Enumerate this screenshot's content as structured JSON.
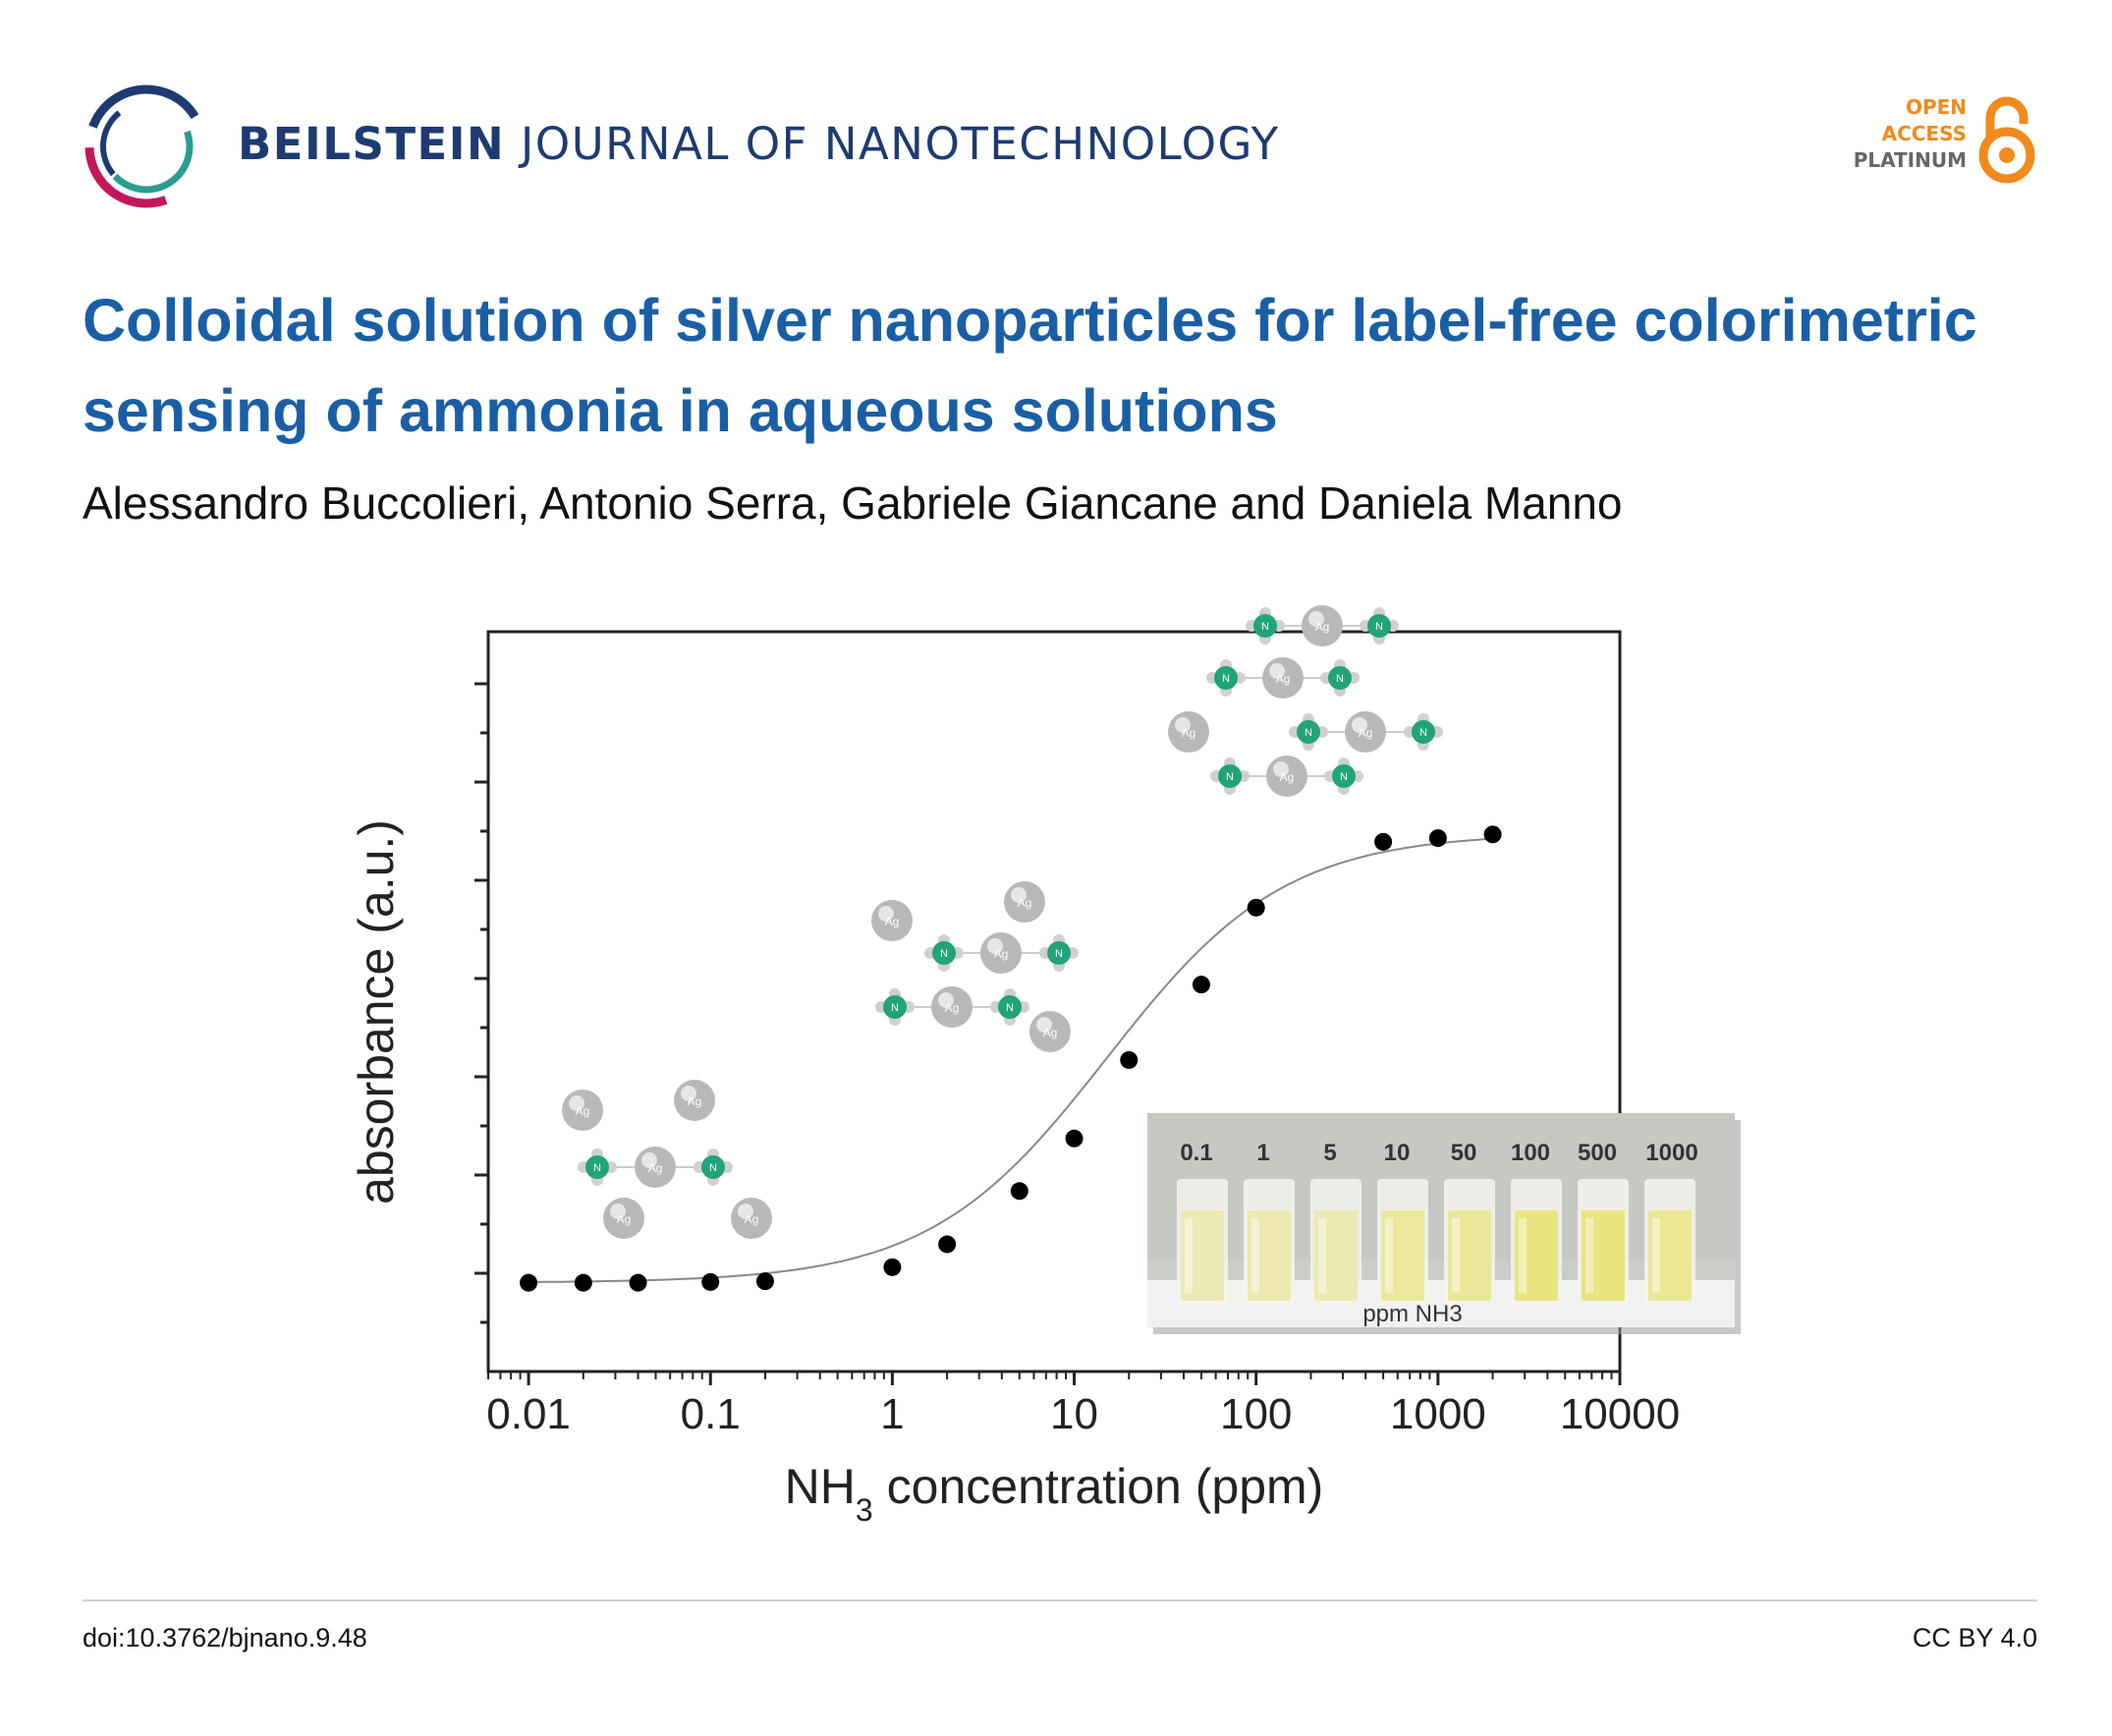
{
  "journal": {
    "name_bold": "BEILSTEIN",
    "name_rest": "JOURNAL OF NANOTECHNOLOGY"
  },
  "open_access": {
    "line1": "OPEN",
    "line2": "ACCESS",
    "line3": "PLATINUM",
    "accent_color": "#f08a1c"
  },
  "article": {
    "title": "Colloidal solution of silver nanoparticles for label-free colorimetric sensing of ammonia in aqueous solutions",
    "authors": "Alessandro Buccolieri, Antonio Serra, Gabriele Giancane and Daniela Manno"
  },
  "footer": {
    "doi": "doi:10.3762/bjnano.9.48",
    "license": "CC BY 4.0"
  },
  "chart_data": {
    "type": "scatter",
    "title": "",
    "xlabel_main": "NH",
    "xlabel_sub": "3",
    "xlabel_tail": "concentration (ppm)",
    "ylabel": "absorbance (a.u.)",
    "xscale": "log",
    "xlim": [
      0.006,
      10000
    ],
    "ylim": [
      0,
      1
    ],
    "xticks": [
      "0.01",
      "0.1",
      "1",
      "10",
      "100",
      "1000",
      "10000"
    ],
    "series": [
      {
        "name": "absorbance",
        "x": [
          0.01,
          0.02,
          0.04,
          0.1,
          0.2,
          1,
          2,
          5,
          10,
          20,
          50,
          100,
          500,
          1000,
          2000
        ],
        "y": [
          0.12,
          0.12,
          0.12,
          0.121,
          0.122,
          0.141,
          0.172,
          0.244,
          0.315,
          0.421,
          0.523,
          0.627,
          0.716,
          0.721,
          0.726
        ]
      }
    ],
    "fit_line": true,
    "molecule_label": "Ag",
    "ligand_label": "N",
    "inset": {
      "concentrations": [
        "0.1",
        "1",
        "5",
        "10",
        "50",
        "100",
        "500",
        "1000"
      ],
      "caption": "ppm NH3",
      "vial_colors": [
        "#ece9b4",
        "#ede9b0",
        "#ece9b3",
        "#ebe89c",
        "#ebe799",
        "#e9e57e",
        "#e8e47e",
        "#ebe794"
      ]
    }
  }
}
